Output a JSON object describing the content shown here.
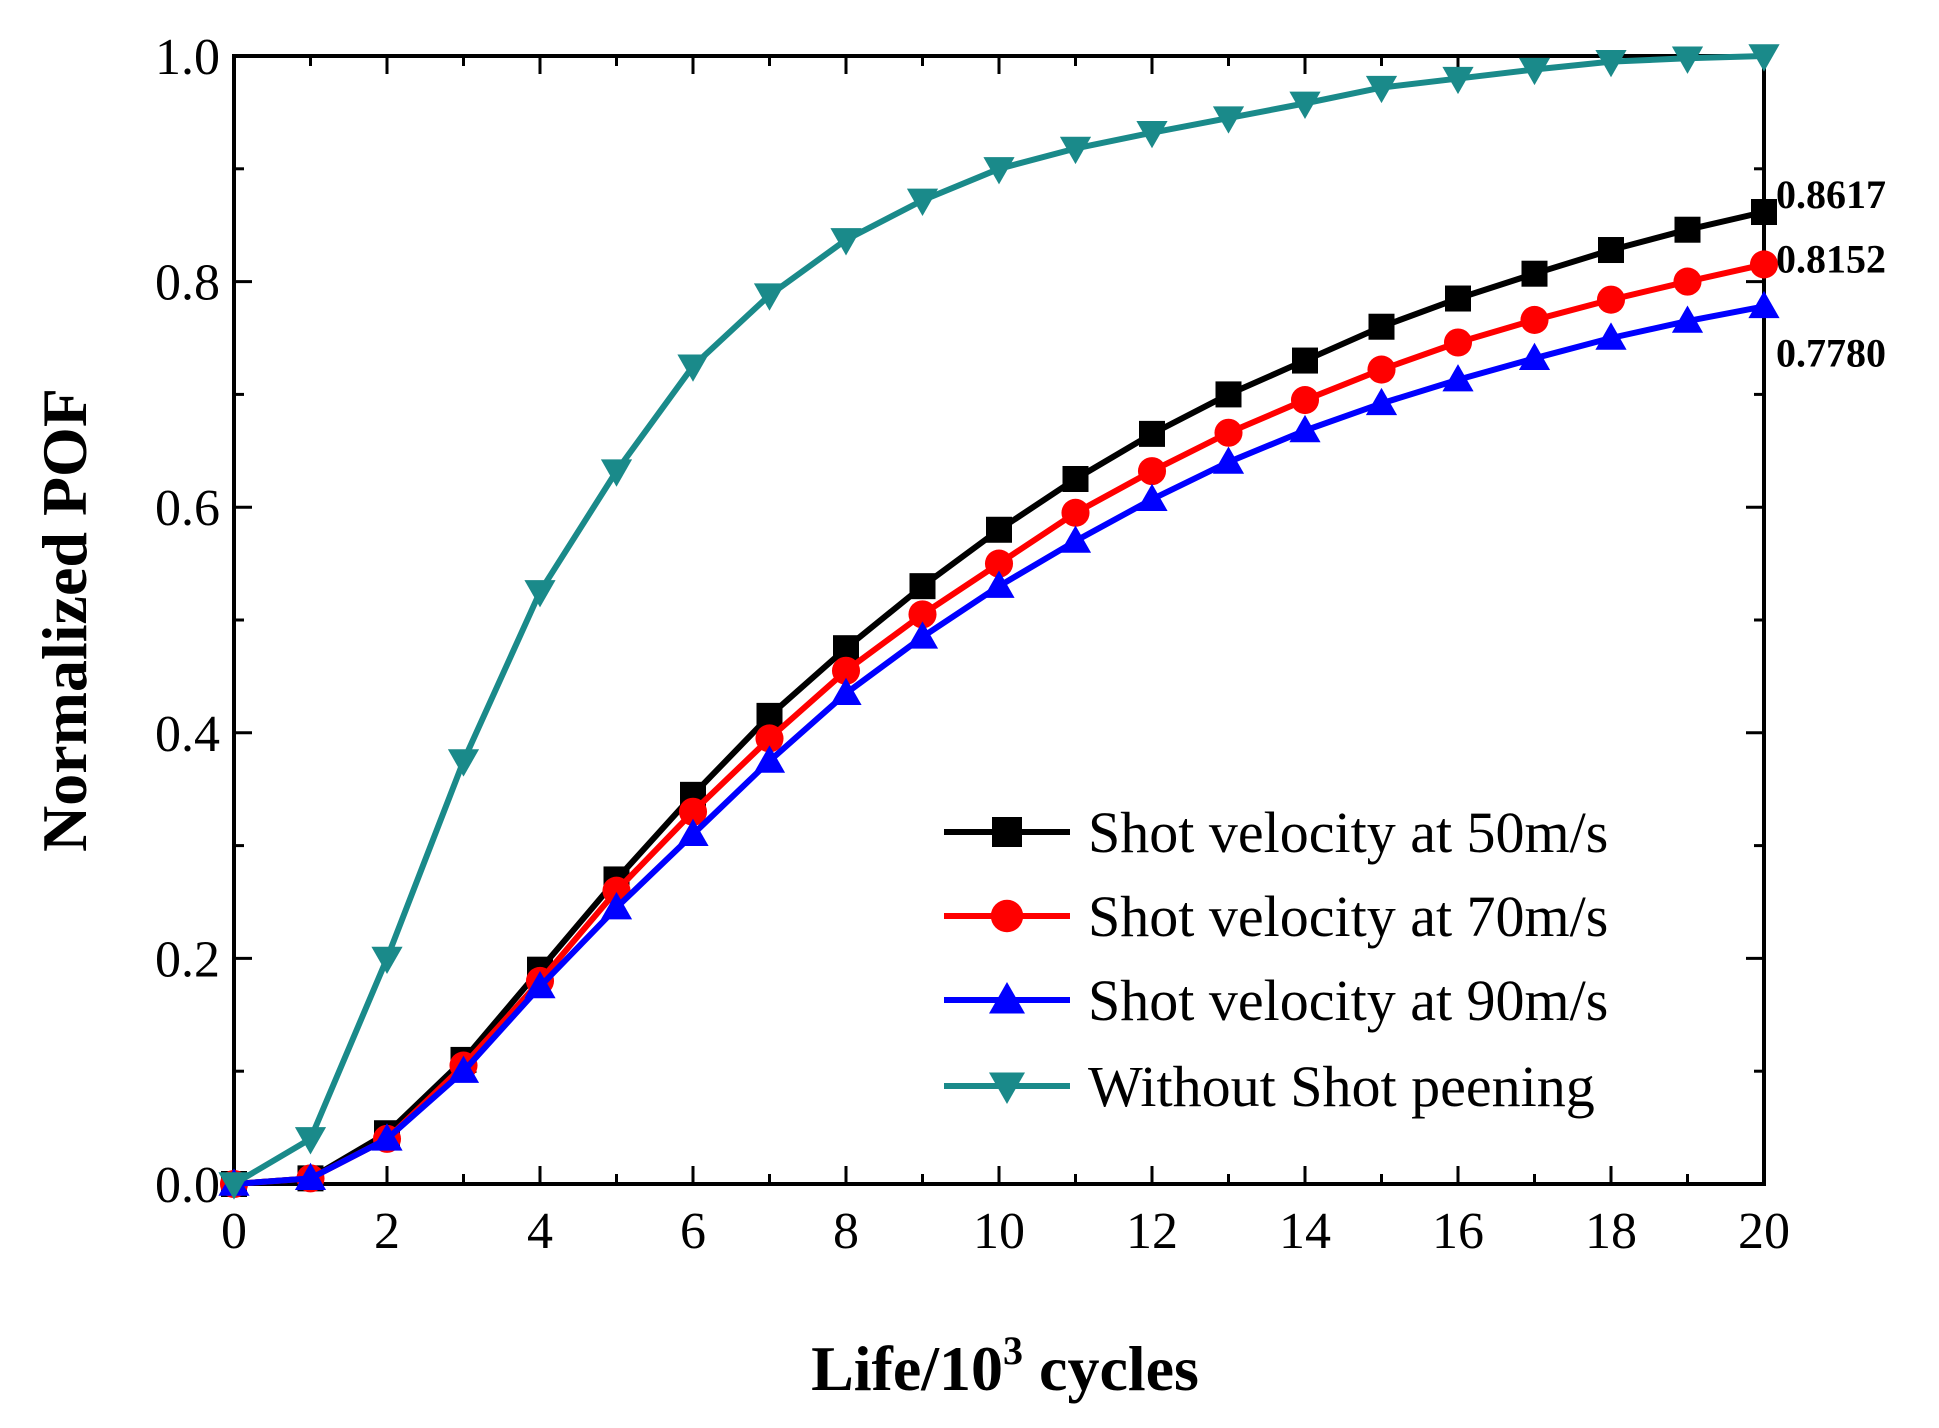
{
  "chart_data": {
    "type": "line",
    "xlabel_main": "Life/10",
    "xlabel_sup": "3",
    "xlabel_tail": " cycles",
    "ylabel": "Normalized POF",
    "xlim": [
      0,
      20
    ],
    "ylim": [
      0,
      1.0
    ],
    "xticks": [
      0,
      2,
      4,
      6,
      8,
      10,
      12,
      14,
      16,
      18,
      20
    ],
    "xtick_labels": [
      "0",
      "2",
      "4",
      "6",
      "8",
      "10",
      "12",
      "14",
      "16",
      "18",
      "20"
    ],
    "yticks": [
      0,
      0.2,
      0.4,
      0.6,
      0.8,
      1.0
    ],
    "ytick_labels": [
      "0.0",
      "0.2",
      "0.4",
      "0.6",
      "0.8",
      "1.0"
    ],
    "grid": false,
    "legend_position": "bottom-right",
    "x": [
      0,
      1,
      2,
      3,
      4,
      5,
      6,
      7,
      8,
      9,
      10,
      11,
      12,
      13,
      14,
      15,
      16,
      17,
      18,
      19,
      20
    ],
    "series": [
      {
        "name": "Shot velocity at 50m/s",
        "color": "#000000",
        "marker": "square",
        "values": [
          0.0,
          0.005,
          0.045,
          0.11,
          0.19,
          0.27,
          0.345,
          0.415,
          0.475,
          0.53,
          0.58,
          0.625,
          0.665,
          0.7,
          0.73,
          0.76,
          0.785,
          0.807,
          0.828,
          0.846,
          0.8617
        ]
      },
      {
        "name": "Shot velocity at 70m/s",
        "color": "#ff0000",
        "marker": "circle",
        "values": [
          0.0,
          0.005,
          0.04,
          0.105,
          0.18,
          0.26,
          0.33,
          0.395,
          0.455,
          0.505,
          0.55,
          0.595,
          0.632,
          0.666,
          0.695,
          0.722,
          0.746,
          0.766,
          0.784,
          0.8,
          0.8152
        ]
      },
      {
        "name": "Shot velocity at 90m/s",
        "color": "#0000ff",
        "marker": "triangle-up",
        "values": [
          0.0,
          0.005,
          0.04,
          0.1,
          0.175,
          0.245,
          0.31,
          0.375,
          0.435,
          0.485,
          0.53,
          0.57,
          0.607,
          0.64,
          0.668,
          0.692,
          0.713,
          0.732,
          0.75,
          0.765,
          0.778
        ]
      },
      {
        "name": "Without Shot peening",
        "color": "#1a8a8a",
        "marker": "triangle-down",
        "values": [
          0.0,
          0.04,
          0.2,
          0.375,
          0.525,
          0.632,
          0.725,
          0.788,
          0.837,
          0.872,
          0.9,
          0.918,
          0.932,
          0.945,
          0.958,
          0.972,
          0.98,
          0.988,
          0.995,
          0.998,
          1.0
        ]
      }
    ],
    "end_labels": [
      "0.8617",
      "0.8152",
      "0.7780"
    ]
  }
}
